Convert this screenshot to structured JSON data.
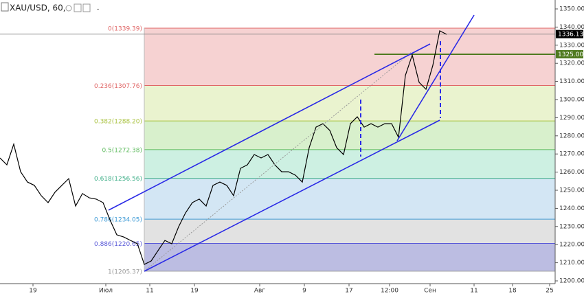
{
  "chart_data": {
    "type": "line",
    "title": "XAU/USD, 60,",
    "series": [
      {
        "name": "XAU/USD",
        "color": "#000000",
        "values": [
          1267.8,
          1264.0,
          1275.4,
          1260.2,
          1254.5,
          1252.7,
          1247.0,
          1243.2,
          1248.9,
          1252.7,
          1256.4,
          1241.3,
          1248.2,
          1245.8,
          1245.1,
          1243.2,
          1233.7,
          1225.4,
          1224.2,
          1222.3,
          1220.5,
          1209.1,
          1211.0,
          1216.7,
          1222.3,
          1220.5,
          1229.9,
          1237.5,
          1243.2,
          1245.1,
          1241.3,
          1252.7,
          1254.5,
          1252.7,
          1247.0,
          1262.1,
          1264.0,
          1269.7,
          1267.8,
          1269.7,
          1264.0,
          1260.2,
          1260.2,
          1258.3,
          1254.5,
          1273.5,
          1284.8,
          1286.7,
          1283.0,
          1273.5,
          1269.7,
          1286.7,
          1290.5,
          1284.8,
          1286.7,
          1284.8,
          1286.7,
          1286.7,
          1279.2,
          1313.3,
          1324.6,
          1309.5,
          1305.7,
          1318.9,
          1337.9,
          1336.0
        ]
      }
    ],
    "xtick_labels": [
      "19",
      "Июл",
      "11",
      "19",
      "Авг",
      "9",
      "17",
      "12:00",
      "Сен",
      "11",
      "18",
      "25"
    ],
    "ylim": [
      1200,
      1350
    ],
    "yticks": [
      {
        "value": 1200,
        "label": "1200.00"
      },
      {
        "value": 1210,
        "label": "1210.00"
      },
      {
        "value": 1220,
        "label": "1220.00"
      },
      {
        "value": 1230,
        "label": "1230.00"
      },
      {
        "value": 1240,
        "label": "1240.00"
      },
      {
        "value": 1250,
        "label": "1250.00"
      },
      {
        "value": 1260,
        "label": "1260.00"
      },
      {
        "value": 1270,
        "label": "1270.00"
      },
      {
        "value": 1280,
        "label": "1280.00"
      },
      {
        "value": 1290,
        "label": "1290.00"
      },
      {
        "value": 1300,
        "label": "1300.00"
      },
      {
        "value": 1310,
        "label": "1310.00"
      },
      {
        "value": 1320,
        "label": "1320.00"
      },
      {
        "value": 1330,
        "label": "1330.00"
      },
      {
        "value": 1340,
        "label": "1340.00"
      },
      {
        "value": 1350,
        "label": "1350.00"
      }
    ],
    "fib_levels": [
      {
        "value": 1339.39,
        "label": "0(1339.39)",
        "color": "#e06666",
        "fill": "#f6d2d2"
      },
      {
        "value": 1307.76,
        "label": "0.236(1307.76)",
        "color": "#e06666",
        "fill": "#eaf3cf"
      },
      {
        "value": 1288.2,
        "label": "0.382(1288.20)",
        "color": "#a9c23f",
        "fill": "#d8f0cc"
      },
      {
        "value": 1272.38,
        "label": "0.5(1272.38)",
        "color": "#5cba5c",
        "fill": "#cdf0e2"
      },
      {
        "value": 1256.56,
        "label": "0.618(1256.56)",
        "color": "#3dae87",
        "fill": "#d3e6f4"
      },
      {
        "value": 1234.05,
        "label": "0.786(1234.05)",
        "color": "#3f9bd6",
        "fill": "#e2e2e2"
      },
      {
        "value": 1220.65,
        "label": "0.886(1220.65)",
        "color": "#5a5ad8",
        "fill": "#bcbde2"
      },
      {
        "value": 1205.37,
        "label": "1(1205.37)",
        "color": "#999999"
      }
    ],
    "last_price": {
      "value": 1336.13,
      "label": "1336.13",
      "color": "#000000"
    },
    "level_line": {
      "value": 1325,
      "label": "1325.00",
      "color": "#4f7a1f"
    }
  }
}
